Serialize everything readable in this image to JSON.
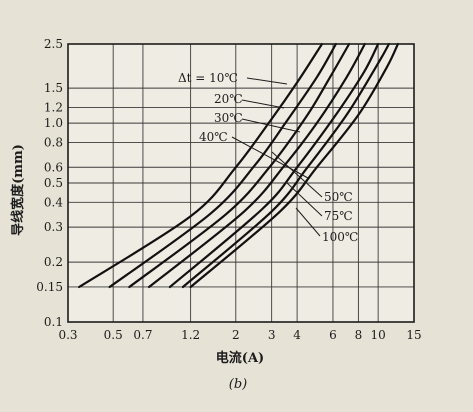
{
  "chart_data": {
    "type": "line",
    "caption": "(b)",
    "xlabel": "电流(A)",
    "ylabel": "导线宽度(mm)",
    "x_scale": "log",
    "y_scale": "log",
    "xlim": [
      0.3,
      15
    ],
    "ylim": [
      0.1,
      2.5
    ],
    "grid": true,
    "x_ticks": [
      {
        "v": 0.3,
        "label": "0.3"
      },
      {
        "v": 0.5,
        "label": "0.5"
      },
      {
        "v": 0.7,
        "label": "0.7"
      },
      {
        "v": 1.2,
        "label": "1.2"
      },
      {
        "v": 2,
        "label": "2"
      },
      {
        "v": 3,
        "label": "3"
      },
      {
        "v": 4,
        "label": "4"
      },
      {
        "v": 6,
        "label": "6"
      },
      {
        "v": 8,
        "label": "8"
      },
      {
        "v": 10,
        "label": "10"
      },
      {
        "v": 15,
        "label": "15"
      }
    ],
    "y_ticks": [
      {
        "v": 0.1,
        "label": "0.1"
      },
      {
        "v": 0.15,
        "label": "0.15"
      },
      {
        "v": 0.2,
        "label": "0.2"
      },
      {
        "v": 0.3,
        "label": "0.3"
      },
      {
        "v": 0.4,
        "label": "0.4"
      },
      {
        "v": 0.5,
        "label": "0.5"
      },
      {
        "v": 0.6,
        "label": "0.6"
      },
      {
        "v": 0.8,
        "label": "0.8"
      },
      {
        "v": 1.0,
        "label": "1.0"
      },
      {
        "v": 1.2,
        "label": "1.2"
      },
      {
        "v": 1.5,
        "label": "1.5"
      },
      {
        "v": 2.5,
        "label": "2.5"
      }
    ],
    "annotation_prefix": "Δt = ",
    "series": [
      {
        "name": "10℃",
        "x": [
          0.34,
          1.2,
          2.0,
          3.0,
          4.0,
          5.3
        ],
        "y": [
          0.15,
          0.34,
          0.6,
          1.05,
          1.6,
          2.5
        ]
      },
      {
        "name": "20℃",
        "x": [
          0.48,
          1.5,
          2.5,
          3.5,
          5.0,
          6.2
        ],
        "y": [
          0.15,
          0.35,
          0.62,
          1.0,
          1.7,
          2.5
        ]
      },
      {
        "name": "30℃",
        "x": [
          0.6,
          1.8,
          3.0,
          4.5,
          5.8,
          7.2
        ],
        "y": [
          0.15,
          0.35,
          0.62,
          1.1,
          1.7,
          2.5
        ]
      },
      {
        "name": "40℃",
        "x": [
          0.75,
          2.2,
          3.5,
          5.0,
          7.0,
          8.6
        ],
        "y": [
          0.15,
          0.36,
          0.62,
          1.0,
          1.7,
          2.5
        ]
      },
      {
        "name": "50℃",
        "x": [
          0.95,
          2.7,
          4.0,
          6.0,
          8.5,
          10.0
        ],
        "y": [
          0.15,
          0.37,
          0.6,
          1.05,
          1.8,
          2.5
        ]
      },
      {
        "name": "75℃",
        "x": [
          1.1,
          3.0,
          4.5,
          7.0,
          10.0,
          11.3
        ],
        "y": [
          0.15,
          0.36,
          0.6,
          1.1,
          2.0,
          2.5
        ]
      },
      {
        "name": "100℃",
        "x": [
          1.2,
          3.3,
          5.0,
          8.0,
          11.0,
          12.5
        ],
        "y": [
          0.15,
          0.36,
          0.6,
          1.1,
          1.9,
          2.5
        ]
      }
    ]
  }
}
